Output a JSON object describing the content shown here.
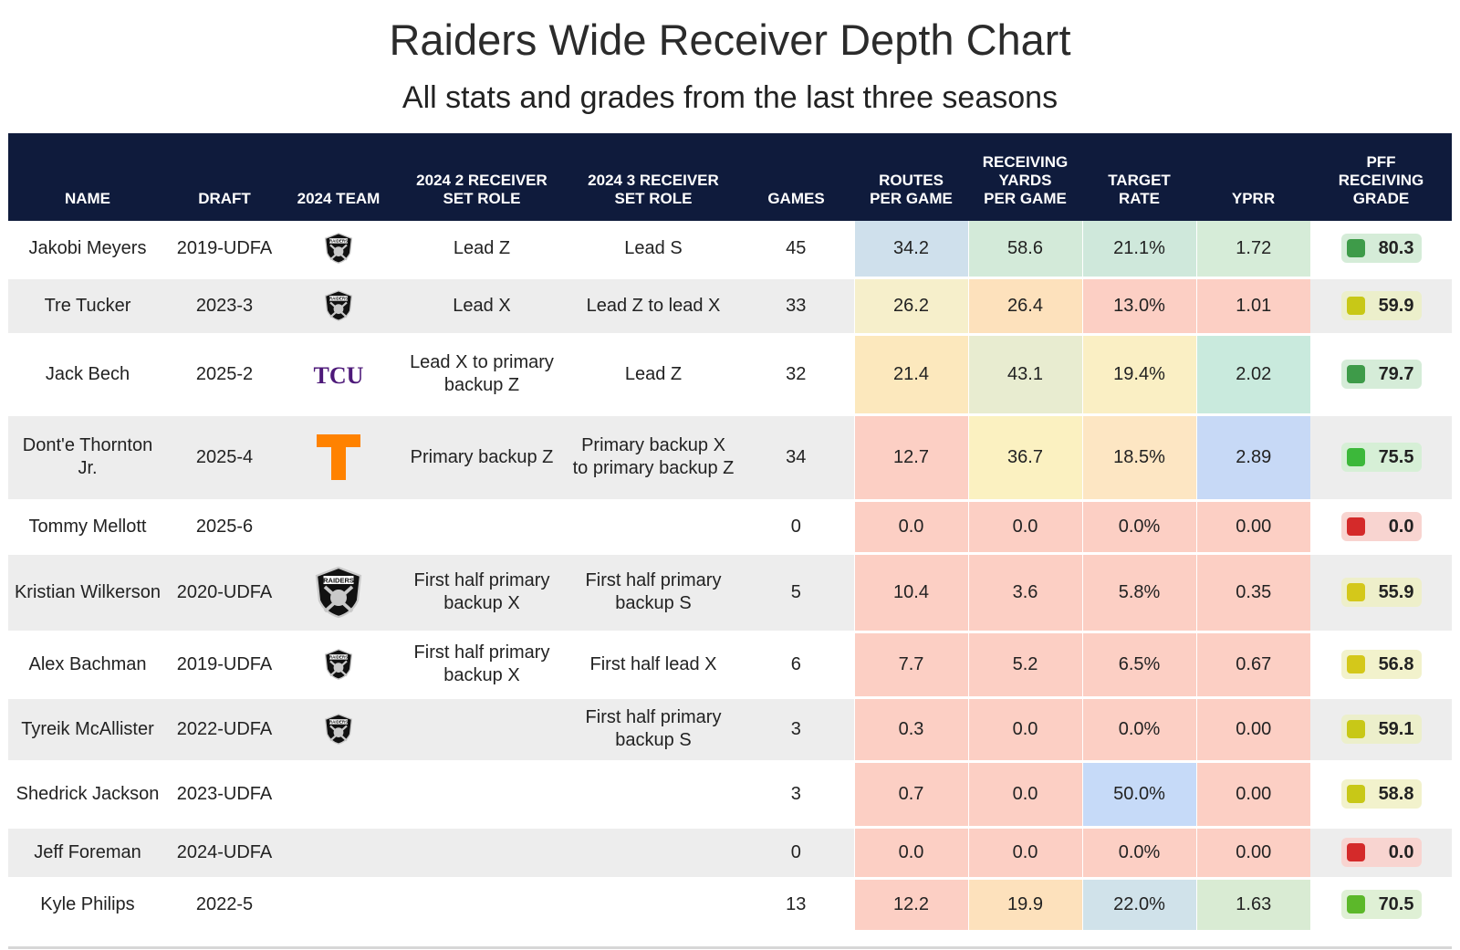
{
  "title": "Raiders Wide Receiver Depth Chart",
  "subtitle": "All stats and grades from the last three seasons",
  "headers": {
    "name": "NAME",
    "draft": "DRAFT",
    "team": "2024 TEAM",
    "role2": "2024 2 RECEIVER SET ROLE",
    "role3": "2024 3 RECEIVER SET ROLE",
    "games": "GAMES",
    "routes": "ROUTES PER GAME",
    "yards": "RECEIVING YARDS PER GAME",
    "target": "TARGET RATE",
    "yprr": "YPRR",
    "grade": "PFF RECEIVING GRADE"
  },
  "chart_data": {
    "type": "table",
    "columns": [
      "NAME",
      "DRAFT",
      "2024 TEAM",
      "2024 2 RECEIVER SET ROLE",
      "2024 3 RECEIVER SET ROLE",
      "GAMES",
      "ROUTES PER GAME",
      "RECEIVING YARDS PER GAME",
      "TARGET RATE",
      "YPRR",
      "PFF RECEIVING GRADE"
    ],
    "rows": [
      {
        "name": "Jakobi Meyers",
        "draft": "2019-UDFA",
        "team_logo": "raiders-logo",
        "role2": "Lead Z",
        "role3": "Lead S",
        "games": "45",
        "routes": "34.2",
        "yards": "58.6",
        "target": "21.1%",
        "yprr": "1.72",
        "grade": "80.3",
        "colors": {
          "routes": "#cfe0ec",
          "yards": "#d3ead9",
          "target": "#cfe8db",
          "yprr": "#d6ecd8",
          "grade_bg": "#d5ecd8",
          "grade_dot": "#3e9b49"
        }
      },
      {
        "name": "Tre Tucker",
        "draft": "2023-3",
        "team_logo": "raiders-logo",
        "role2": "Lead X",
        "role3": "Lead Z to lead X",
        "games": "33",
        "routes": "26.2",
        "yards": "26.4",
        "target": "13.0%",
        "yprr": "1.01",
        "grade": "59.9",
        "colors": {
          "routes": "#f6efcb",
          "yards": "#fde1bc",
          "target": "#fccfc4",
          "yprr": "#fccfc4",
          "grade_bg": "#ecefcb",
          "grade_dot": "#c8c817"
        }
      },
      {
        "name": "Jack Bech",
        "draft": "2025-2",
        "team_logo": "tcu-logo",
        "role2": "Lead X to primary backup Z",
        "role3": "Lead Z",
        "games": "32",
        "routes": "21.4",
        "yards": "43.1",
        "target": "19.4%",
        "yprr": "2.02",
        "grade": "79.7",
        "colors": {
          "routes": "#fce8bd",
          "yards": "#e8ecd0",
          "target": "#faefc4",
          "yprr": "#c9eadd",
          "grade_bg": "#d5ecd8",
          "grade_dot": "#3e9b49"
        }
      },
      {
        "name": "Dont'e Thornton Jr.",
        "draft": "2025-4",
        "team_logo": "tennessee-logo",
        "role2": "Primary backup Z",
        "role3": "Primary backup X to primary backup Z",
        "games": "34",
        "routes": "12.7",
        "yards": "36.7",
        "target": "18.5%",
        "yprr": "2.89",
        "grade": "75.5",
        "colors": {
          "routes": "#fccfc4",
          "yards": "#fbf1c1",
          "target": "#fde6c3",
          "yprr": "#c7d9f6",
          "grade_bg": "#d6efd6",
          "grade_dot": "#3cb83a"
        }
      },
      {
        "name": "Tommy Mellott",
        "draft": "2025-6",
        "team_logo": "",
        "role2": "",
        "role3": "",
        "games": "0",
        "routes": "0.0",
        "yards": "0.0",
        "target": "0.0%",
        "yprr": "0.00",
        "grade": "0.0",
        "colors": {
          "routes": "#fccfc4",
          "yards": "#fccfc4",
          "target": "#fccfc4",
          "yprr": "#fccfc4",
          "grade_bg": "#f8d4d0",
          "grade_dot": "#d42a2a"
        }
      },
      {
        "name": "Kristian Wilkerson",
        "draft": "2020-UDFA",
        "team_logo": "raiders-logo-large",
        "role2": "First half primary backup X",
        "role3": "First half primary backup S",
        "games": "5",
        "routes": "10.4",
        "yards": "3.6",
        "target": "5.8%",
        "yprr": "0.35",
        "grade": "55.9",
        "colors": {
          "routes": "#fccfc4",
          "yards": "#fccfc4",
          "target": "#fccfc4",
          "yprr": "#fccfc4",
          "grade_bg": "#eeefca",
          "grade_dot": "#d4c81a"
        }
      },
      {
        "name": "Alex Bachman",
        "draft": "2019-UDFA",
        "team_logo": "raiders-logo",
        "role2": "First half primary backup X",
        "role3": "First half lead X",
        "games": "6",
        "routes": "7.7",
        "yards": "5.2",
        "target": "6.5%",
        "yprr": "0.67",
        "grade": "56.8",
        "colors": {
          "routes": "#fccfc4",
          "yards": "#fccfc4",
          "target": "#fccfc4",
          "yprr": "#fccfc4",
          "grade_bg": "#f2f2cc",
          "grade_dot": "#d4c81a"
        }
      },
      {
        "name": "Tyreik McAllister",
        "draft": "2022-UDFA",
        "team_logo": "raiders-logo",
        "role2": "",
        "role3": "First half primary backup S",
        "games": "3",
        "routes": "0.3",
        "yards": "0.0",
        "target": "0.0%",
        "yprr": "0.00",
        "grade": "59.1",
        "colors": {
          "routes": "#fccfc4",
          "yards": "#fccfc4",
          "target": "#fccfc4",
          "yprr": "#fccfc4",
          "grade_bg": "#ecefcb",
          "grade_dot": "#c8c817"
        }
      },
      {
        "name": "Shedrick Jackson",
        "draft": "2023-UDFA",
        "team_logo": "",
        "role2": "",
        "role3": "",
        "games": "3",
        "routes": "0.7",
        "yards": "0.0",
        "target": "50.0%",
        "yprr": "0.00",
        "grade": "58.8",
        "colors": {
          "routes": "#fccfc4",
          "yards": "#fccfc4",
          "target": "#c6daf8",
          "yprr": "#fccfc4",
          "grade_bg": "#f2f2cc",
          "grade_dot": "#c8c817"
        }
      },
      {
        "name": "Jeff Foreman",
        "draft": "2024-UDFA",
        "team_logo": "",
        "role2": "",
        "role3": "",
        "games": "0",
        "routes": "0.0",
        "yards": "0.0",
        "target": "0.0%",
        "yprr": "0.00",
        "grade": "0.0",
        "colors": {
          "routes": "#fccfc4",
          "yards": "#fccfc4",
          "target": "#fccfc4",
          "yprr": "#fccfc4",
          "grade_bg": "#f8d4d0",
          "grade_dot": "#d42a2a"
        }
      },
      {
        "name": "Kyle Philips",
        "draft": "2022-5",
        "team_logo": "",
        "role2": "",
        "role3": "",
        "games": "13",
        "routes": "12.2",
        "yards": "19.9",
        "target": "22.0%",
        "yprr": "1.63",
        "grade": "70.5",
        "colors": {
          "routes": "#fccfc4",
          "yards": "#fde1bc",
          "target": "#d0e2ea",
          "yprr": "#d9ebd3",
          "grade_bg": "#dff0d5",
          "grade_dot": "#5cb82a"
        }
      }
    ]
  }
}
